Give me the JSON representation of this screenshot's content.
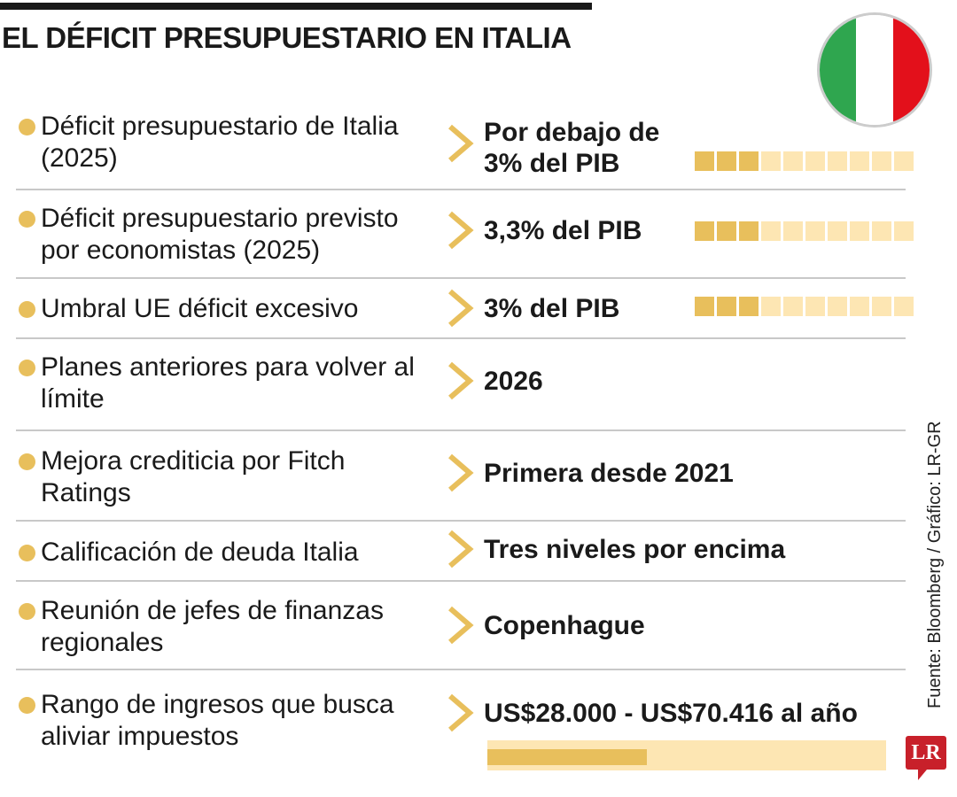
{
  "title": "EL DÉFICIT PRESUPUESTARIO EN ITALIA",
  "flag_colors": [
    "#2fa64f",
    "#ffffff",
    "#e3101b"
  ],
  "colors": {
    "accent": "#e8bf5c",
    "accent_light": "#fde6b3",
    "brand": "#c8202a"
  },
  "rows": [
    {
      "label": "Déficit presupuestario de Italia (2025)",
      "value": "Por debajo de 3% del PIB",
      "squares_filled": 3,
      "squares_total": 10
    },
    {
      "label": "Déficit presupuestario previsto por economistas (2025)",
      "value": "3,3% del PIB",
      "squares_filled": 3,
      "squares_total": 10
    },
    {
      "label": "Umbral UE déficit excesivo",
      "value": "3% del PIB",
      "squares_filled": 3,
      "squares_total": 10
    },
    {
      "label": "Planes anteriores para volver al límite",
      "value": "2026"
    },
    {
      "label": "Mejora crediticia por Fitch Ratings",
      "value": "Primera desde 2021"
    },
    {
      "label": "Calificación de deuda Italia",
      "value": "Tres niveles por encima"
    },
    {
      "label": "Reunión de jefes de finanzas regionales",
      "value": "Copenhague"
    },
    {
      "label": "Rango de ingresos que busca aliviar impuestos",
      "value": "US$28.000 - US$70.416 al año",
      "bar_fraction": 0.4
    }
  ],
  "source": "Fuente: Bloomberg / Gráfico: LR-GR",
  "logo": "LR"
}
